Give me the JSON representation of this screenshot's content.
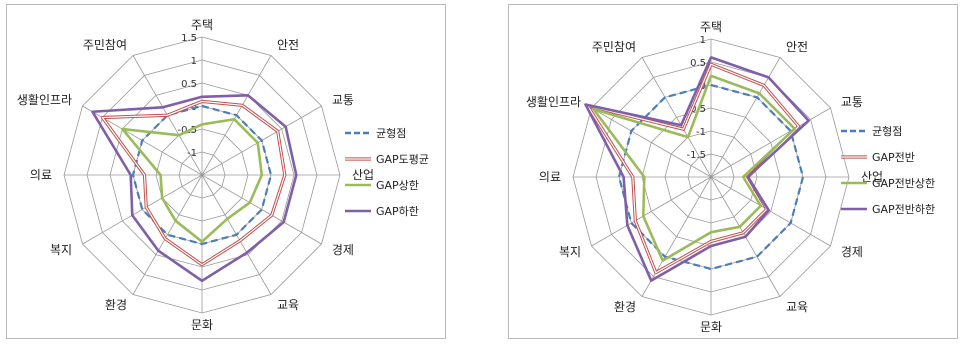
{
  "chart_data": [
    {
      "type": "radar",
      "categories": [
        "주택",
        "안전",
        "교통",
        "산업",
        "경제",
        "교육",
        "문화",
        "환경",
        "복지",
        "의료",
        "생활인프라",
        "주민참여"
      ],
      "ticks": [
        "1.5",
        "1",
        "0.5",
        "0",
        "-0.5",
        "-1"
      ],
      "rlim": [
        -1.5,
        1.5
      ],
      "series": [
        {
          "name": "균형점",
          "color": "#4a7ebb",
          "dash": true,
          "values": [
            0,
            0,
            0,
            0,
            0,
            0,
            0,
            0,
            0,
            0,
            0,
            0
          ]
        },
        {
          "name": "GAP도평균",
          "color": "#c0504d",
          "dash": false,
          "values": [
            0.1,
            0.25,
            0.4,
            0.3,
            0.25,
            0.15,
            0.45,
            0.1,
            -0.1,
            -0.25,
            1.0,
            0.0
          ]
        },
        {
          "name": "GAP상한",
          "color": "#9bbb59",
          "dash": false,
          "values": [
            -0.4,
            -0.1,
            -0.1,
            -0.2,
            -0.3,
            -0.4,
            -0.05,
            -0.35,
            -0.5,
            -0.6,
            0.5,
            -0.5
          ]
        },
        {
          "name": "GAP하한",
          "color": "#7f5fa8",
          "dash": false,
          "values": [
            0.2,
            0.5,
            0.6,
            0.55,
            0.55,
            0.45,
            0.8,
            0.4,
            0.25,
            0.05,
            1.25,
            0.2
          ]
        }
      ]
    },
    {
      "type": "radar",
      "categories": [
        "주택",
        "안전",
        "교통",
        "산업",
        "경제",
        "교육",
        "문화",
        "환경",
        "복지",
        "의료",
        "생활인프라",
        "주민참여"
      ],
      "ticks": [
        "1",
        "0.5",
        "0",
        "-0.5",
        "-1",
        "-1.5"
      ],
      "rlim": [
        -2,
        1
      ],
      "series": [
        {
          "name": "균형점",
          "color": "#4a7ebb",
          "dash": true,
          "values": [
            0,
            0,
            0,
            0,
            0,
            0,
            0,
            0,
            0,
            0,
            0,
            0
          ]
        },
        {
          "name": "GAP전반",
          "color": "#c0504d",
          "dash": false,
          "values": [
            0.45,
            0.3,
            0.2,
            -1.2,
            -0.6,
            -0.6,
            -0.6,
            0.4,
            -0.1,
            -0.3,
            1.1,
            -0.8
          ]
        },
        {
          "name": "GAP전반상한",
          "color": "#9bbb59",
          "dash": false,
          "values": [
            0.2,
            0.1,
            0.1,
            -1.3,
            -0.75,
            -0.75,
            -0.8,
            0.1,
            -0.3,
            -0.55,
            0.95,
            -1.0
          ]
        },
        {
          "name": "GAP전반하한",
          "color": "#7f5fa8",
          "dash": false,
          "values": [
            0.6,
            0.5,
            0.45,
            -1.2,
            -0.55,
            -0.5,
            -0.5,
            0.6,
            0.1,
            -0.1,
            1.15,
            -0.7
          ]
        }
      ]
    }
  ]
}
